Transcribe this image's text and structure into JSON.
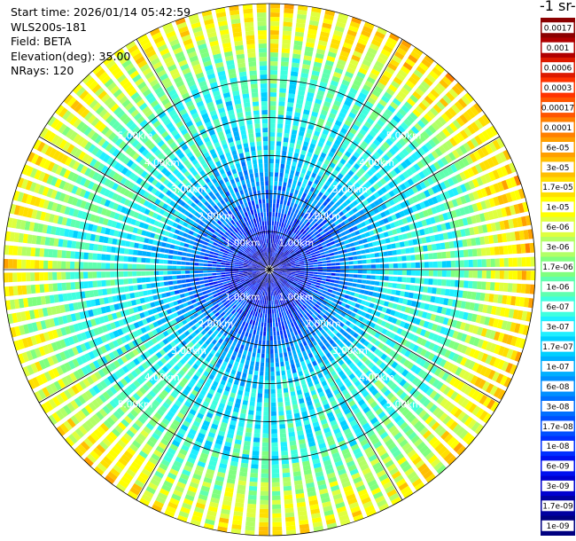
{
  "header": {
    "start_time": "Start time: 2026/01/14 05:42:59",
    "instrument": "WLS200s-181",
    "field": "Field: BETA",
    "elevation": "Elevation(deg): 35.00",
    "nrays": "NRays: 120"
  },
  "colorbar": {
    "title_fragment": "-1 sr-",
    "labels": [
      "0.0017",
      "0.001",
      "0.0006",
      "0.0003",
      "0.00017",
      "0.0001",
      "6e-05",
      "3e-05",
      "1.7e-05",
      "1e-05",
      "6e-06",
      "3e-06",
      "1.7e-06",
      "1e-06",
      "6e-07",
      "3e-07",
      "1.7e-07",
      "1e-07",
      "6e-08",
      "3e-08",
      "1.7e-08",
      "1e-08",
      "6e-09",
      "3e-09",
      "1.7e-09",
      "1e-09"
    ],
    "colors": [
      "#8b0000",
      "#b00000",
      "#dd1a00",
      "#ff3300",
      "#ff5500",
      "#ff8000",
      "#ff9f00",
      "#ffbf00",
      "#ffdf00",
      "#ffff00",
      "#dfff3f",
      "#b2ff66",
      "#7fff7f",
      "#5fffaf",
      "#3fffdf",
      "#1fefff",
      "#00cfff",
      "#00afff",
      "#008fff",
      "#006fff",
      "#004fff",
      "#002fff",
      "#0010ef",
      "#0000cf",
      "#0000a0",
      "#000080"
    ]
  },
  "chart_data": {
    "type": "heatmap",
    "projection": "polar PPI",
    "field": "BETA",
    "elevation_deg": 35.0,
    "n_rays": 120,
    "range_ring_labels": [
      "1.00km",
      "2.00km",
      "3.00km",
      "4.00km",
      "5.00km"
    ],
    "range_rings_km": [
      1,
      2,
      3,
      4,
      5
    ],
    "max_range_km": 7.0,
    "radial_profile_log10_beta": [
      {
        "range_km": 0.2,
        "value": -8.5
      },
      {
        "range_km": 1.0,
        "value": -8.0
      },
      {
        "range_km": 2.0,
        "value": -7.3
      },
      {
        "range_km": 3.0,
        "value": -6.6
      },
      {
        "range_km": 4.0,
        "value": -6.3
      },
      {
        "range_km": 5.0,
        "value": -6.2
      },
      {
        "range_km": 6.0,
        "value": -5.5
      },
      {
        "range_km": 7.0,
        "value": -5.0
      }
    ],
    "colorscale": "log10 beta",
    "vmin": 1e-09,
    "vmax": 0.0017
  }
}
